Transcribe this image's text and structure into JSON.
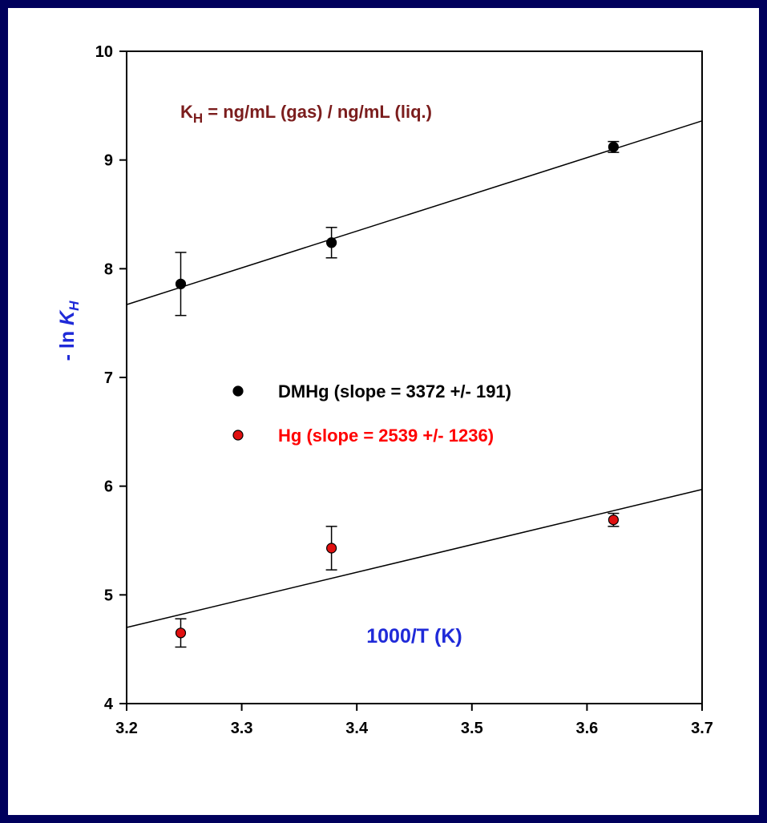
{
  "chart_data": {
    "type": "scatter",
    "xlabel": "1000/T (K)",
    "ylabel_prefix": "- ln ",
    "ylabel_var": "K",
    "ylabel_sub": "H",
    "xlim": [
      3.2,
      3.7
    ],
    "ylim": [
      4,
      10
    ],
    "x_ticks": [
      "3.2",
      "3.3",
      "3.4",
      "3.5",
      "3.6",
      "3.7"
    ],
    "y_ticks": [
      "4",
      "5",
      "6",
      "7",
      "8",
      "9",
      "10"
    ],
    "grid": false,
    "annotation": {
      "main": "K",
      "sub": "H",
      "rest": " = ng/mL (gas) / ng/mL (liq.)",
      "color": "#7b1d1d"
    },
    "series": [
      {
        "name": "DMHg (slope = 3372 +/- 191)",
        "color": "#000000",
        "label_color": "#000000",
        "x": [
          3.247,
          3.378,
          3.623
        ],
        "y": [
          7.86,
          8.24,
          9.12
        ],
        "err": [
          0.29,
          0.14,
          0.05
        ],
        "fit": {
          "x": [
            3.2,
            3.7
          ],
          "y": [
            7.67,
            9.36
          ]
        }
      },
      {
        "name": "Hg (slope = 2539 +/- 1236)",
        "color": "#e01010",
        "label_color": "#ff0000",
        "x": [
          3.247,
          3.378,
          3.623
        ],
        "y": [
          4.65,
          5.43,
          5.69
        ],
        "err": [
          0.13,
          0.2,
          0.06
        ],
        "fit": {
          "x": [
            3.2,
            3.7
          ],
          "y": [
            4.7,
            5.97
          ]
        }
      }
    ],
    "colors": {
      "axis_title": "#1f2ad8",
      "background": "#00005c",
      "slide": "#ffffff"
    }
  }
}
